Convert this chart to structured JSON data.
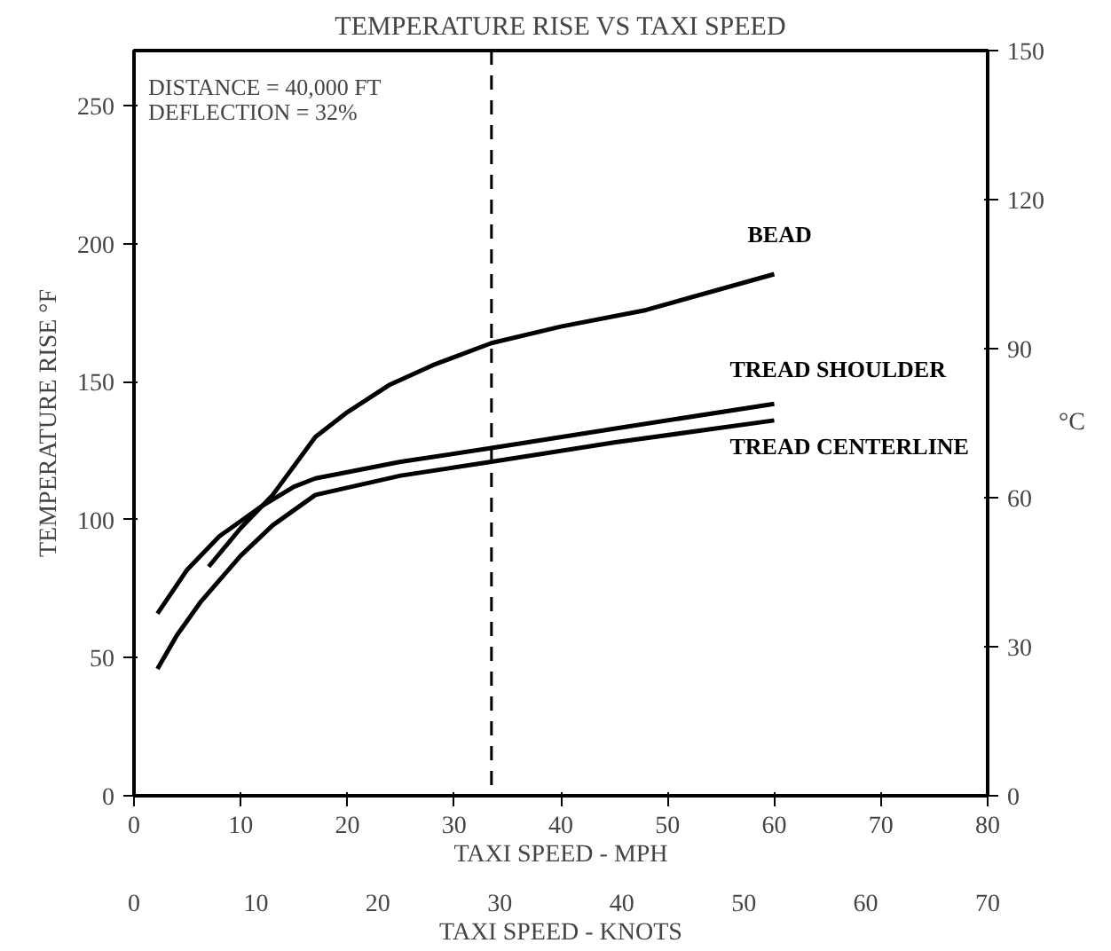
{
  "chart_data": {
    "type": "line",
    "title": "TEMPERATURE RISE VS TAXI SPEED",
    "xlabel": "TAXI SPEED - MPH",
    "ylabel": "TEMPERATURE RISE °F",
    "y2label": "°C",
    "x2label": "TAXI SPEED - KNOTS",
    "xlim": [
      0,
      80
    ],
    "xticks": [
      0,
      10,
      20,
      30,
      40,
      50,
      60,
      70,
      80
    ],
    "ylim": [
      0,
      270
    ],
    "yticks": [
      0,
      50,
      100,
      150,
      200,
      250
    ],
    "y2lim": [
      0,
      150
    ],
    "y2ticks": [
      0,
      30,
      60,
      90,
      120,
      150
    ],
    "x2lim": [
      0,
      70
    ],
    "x2ticks": [
      0,
      10,
      20,
      30,
      40,
      50,
      60,
      70
    ],
    "grid": false,
    "marker": "none",
    "line_style": "solid",
    "annotations": [
      "DISTANCE = 40,000 FT",
      "DEFLECTION = 32%"
    ],
    "ref_lines": [
      {
        "axis": "x",
        "value": 33.5,
        "label": null,
        "color": "#000000",
        "line_style": "dashed"
      }
    ],
    "series": [
      {
        "name": "BEAD",
        "color": "#000000",
        "x": [
          7,
          10,
          13,
          17,
          20,
          24,
          28,
          33.5,
          40,
          48,
          60
        ],
        "values": [
          83,
          97,
          109,
          130,
          139,
          149,
          156,
          164,
          170,
          176,
          189
        ]
      },
      {
        "name": "TREAD SHOULDER",
        "color": "#000000",
        "x": [
          2.2,
          5,
          8,
          12,
          15,
          17,
          25,
          33.5,
          45,
          60
        ],
        "values": [
          66,
          82,
          94,
          105,
          112,
          115,
          121,
          126,
          133,
          142
        ]
      },
      {
        "name": "TREAD CENTERLINE",
        "color": "#000000",
        "x": [
          2.2,
          4,
          6.2,
          10,
          13,
          17,
          25,
          33.5,
          45,
          60
        ],
        "values": [
          46,
          58,
          70,
          87,
          98,
          109,
          116,
          121,
          128,
          136
        ]
      }
    ]
  }
}
